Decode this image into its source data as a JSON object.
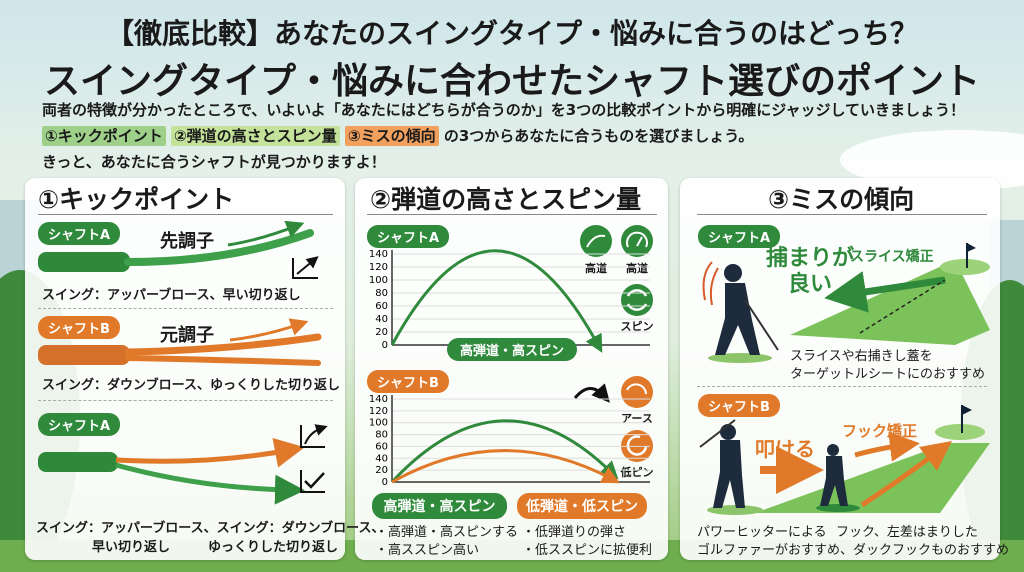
{
  "header": {
    "title_line1": "【徹底比較】あなたのスイングタイプ・悩みに合うのはどっち？",
    "title_line2": "スイングタイプ・悩みに合わせたシャフト選びのポイント"
  },
  "intro": {
    "line1": "両者の特徴が分かったところで、いよいよ「あなたにはどちらが合うのか」を3つの比較ポイントから明確にジャッジしていきましょう！",
    "tag1": "①キックポイント",
    "tag2": "②弾道の高さとスピン量",
    "tag3": "③ミスの傾向",
    "line2_rest": "の3つからあなたに合うものを選びましょう。",
    "line3": "きっと、あなたに合うシャフトが見つかりますよ！"
  },
  "colors": {
    "green": "#2f8a3c",
    "orange": "#e07a2a"
  },
  "kick_panel": {
    "heading": "①キックポイント",
    "a": {
      "badge": "シャフトA",
      "type": "先調子",
      "swing": "スイング：アッパーブロース、早い切り返し"
    },
    "b": {
      "badge": "シャフトB",
      "type": "元調子",
      "swing": "スイング：ダウンブロース、ゆっくりした切り返し"
    },
    "c": {
      "badge": "シャフトA",
      "swing_line1": "スイング：アッパーブロース、スイング：ダウンブロース、",
      "swing_line2_a": "早い切り返し",
      "swing_line2_b": "ゆっくりした切り返し"
    }
  },
  "trajectory_panel": {
    "heading": "②弾道の高さとスピン量",
    "chart_a": {
      "badge": "シャフトA",
      "result": "高弾道・高スピン",
      "icons": [
        {
          "icon": "trajectory-icon",
          "label": "高道"
        },
        {
          "icon": "gauge-icon",
          "label": "高道"
        },
        {
          "icon": "spin-icon",
          "label": "スピン"
        }
      ]
    },
    "chart_b": {
      "badge": "シャフトB",
      "icons": [
        {
          "icon": "arc-icon",
          "label": "アース"
        },
        {
          "icon": "spin-icon",
          "label": "低ピン"
        }
      ]
    },
    "result_a": {
      "label": "高弾道・高スピン",
      "bullets": [
        "・高弾道・高スピンする",
        "・高ススピン高い"
      ]
    },
    "result_b": {
      "label": "低弾道・低スピン",
      "bullets": [
        "・低弾道りの弾さ",
        "・低ススピンに拡便利"
      ]
    }
  },
  "chart_data": [
    {
      "type": "line",
      "ylim": [
        0,
        140
      ],
      "yticks": [
        0,
        20,
        40,
        60,
        80,
        100,
        120,
        140
      ],
      "grid": true,
      "series": [
        {
          "color": "#2f8a3c",
          "values": [
            0,
            145,
            0
          ]
        }
      ]
    },
    {
      "type": "line",
      "ylim": [
        0,
        140
      ],
      "yticks": [
        0,
        20,
        40,
        60,
        80,
        100,
        120,
        140
      ],
      "grid": true,
      "series": [
        {
          "color": "#2f8a3c",
          "values": [
            0,
            103,
            15
          ]
        },
        {
          "color": "#e07a2a",
          "values": [
            0,
            53,
            5
          ]
        }
      ]
    }
  ],
  "miss_panel": {
    "heading": "③ミスの傾向",
    "a": {
      "badge": "シャフトA",
      "catch": "捕まりが",
      "catch2": "良い",
      "fix": "スライス矯正",
      "desc1": "スライスや右捕きし蓋を",
      "desc2": "ターゲットルシートにのおすすめ"
    },
    "b": {
      "badge": "シャフトB",
      "hit": "叩ける",
      "fix": "フック矯正",
      "desc1a": "パワーヒッターによる",
      "desc1b": "フック、左差はまりした",
      "desc2": "ゴルファァーがおすすめ、ダックフックものおすすめ"
    }
  }
}
